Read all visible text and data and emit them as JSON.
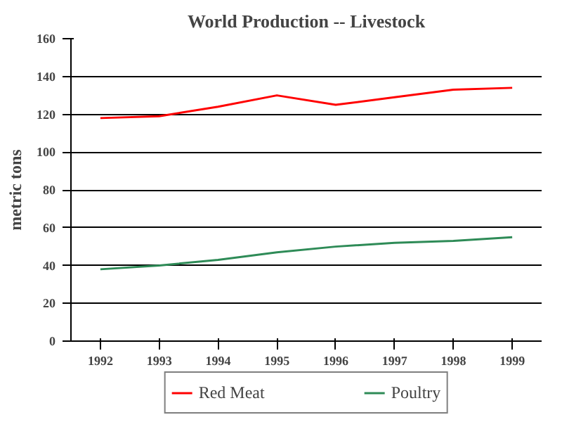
{
  "chart_data": {
    "type": "line",
    "title": "World Production -- Livestock",
    "ylabel": "metric tons",
    "categories": [
      "1992",
      "1993",
      "1994",
      "1995",
      "1996",
      "1997",
      "1998",
      "1999"
    ],
    "series": [
      {
        "name": "Red Meat",
        "color": "#ff0000",
        "values": [
          118,
          119,
          124,
          130,
          125,
          129,
          133,
          134
        ]
      },
      {
        "name": "Poultry",
        "color": "#2e8b57",
        "values": [
          38,
          40,
          43,
          47,
          50,
          52,
          53,
          55
        ]
      }
    ],
    "ylim": [
      0,
      160
    ],
    "yticks": [
      0,
      20,
      40,
      60,
      80,
      100,
      120,
      140,
      160
    ],
    "grid": "y",
    "legend": "bottom",
    "line_style": "solid",
    "marker": "none"
  }
}
